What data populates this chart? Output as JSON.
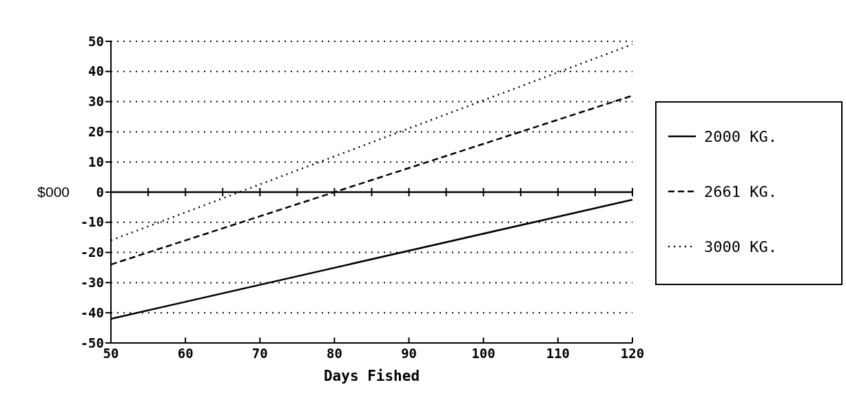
{
  "chart_data": {
    "type": "line",
    "xlabel": "Days Fished",
    "ylabel": "$000",
    "x": [
      50,
      120
    ],
    "series": [
      {
        "name": "2000 KG.",
        "color": "#000000",
        "values": [
          -42,
          -2.5
        ],
        "line_style": "solid"
      },
      {
        "name": "2661 KG.",
        "color": "#000000",
        "values": [
          -24,
          32
        ],
        "line_style": "dashed"
      },
      {
        "name": "3000 KG.",
        "color": "#000000",
        "values": [
          -16,
          49
        ],
        "line_style": "dotted"
      }
    ],
    "xlim": [
      50,
      120
    ],
    "xticks": [
      50,
      60,
      70,
      80,
      90,
      100,
      110,
      120
    ],
    "ylim": [
      -50,
      50
    ],
    "yticks": [
      -50,
      -40,
      -30,
      -20,
      -10,
      0,
      10,
      20,
      30,
      40,
      50
    ],
    "ref_lines": [
      {
        "axis": "y",
        "value": 0
      }
    ],
    "grid": "y",
    "legend": "right",
    "marker": "none"
  }
}
